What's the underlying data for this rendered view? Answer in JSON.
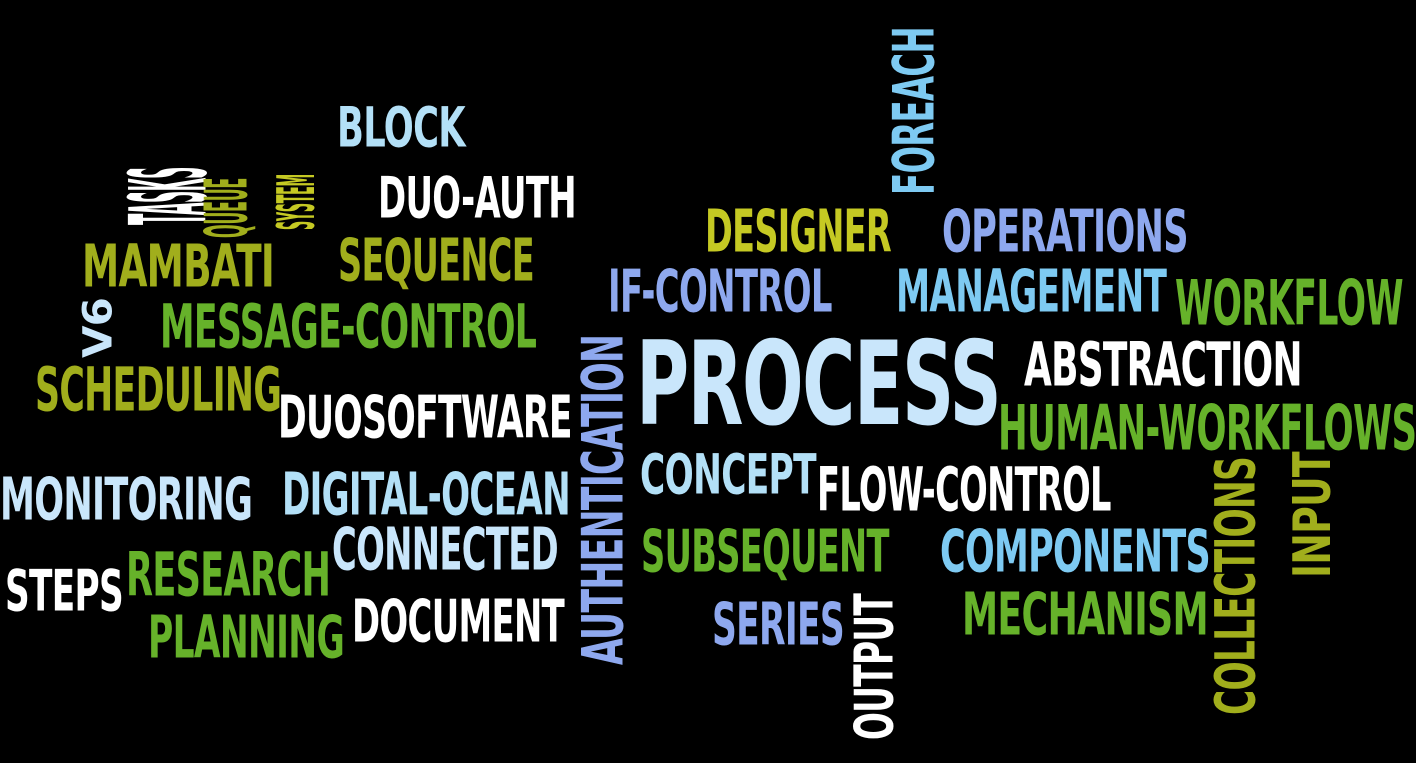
{
  "palette": {
    "background": "#000000",
    "white": "#ffffff",
    "light_blue": "#b3e0f7",
    "sky_blue": "#7ecaf2",
    "periwinkle": "#8ea8ee",
    "pale_blue": "#c9e6fb",
    "lime": "#66b22a",
    "olive": "#a1ae1c",
    "yellow_green": "#c5c923"
  },
  "words": [
    {
      "text": "TASKS",
      "color": "#ffffff"
    },
    {
      "text": "QUEUE",
      "color": "#a1ae1c"
    },
    {
      "text": "SYSTEM",
      "color": "#c5c923"
    },
    {
      "text": "BLOCK",
      "color": "#b3e0f7"
    },
    {
      "text": "DUO-AUTH",
      "color": "#ffffff"
    },
    {
      "text": "FOREACH",
      "color": "#7ecaf2"
    },
    {
      "text": "DESIGNER",
      "color": "#c5c923"
    },
    {
      "text": "OPERATIONS",
      "color": "#8ea8ee"
    },
    {
      "text": "MAMBATI",
      "color": "#a1ae1c"
    },
    {
      "text": "SEQUENCE",
      "color": "#a1ae1c"
    },
    {
      "text": "IF-CONTROL",
      "color": "#8ea8ee"
    },
    {
      "text": "MANAGEMENT",
      "color": "#7ecaf2"
    },
    {
      "text": "WORKFLOW",
      "color": "#66b22a"
    },
    {
      "text": "V6",
      "color": "#c9e6fb"
    },
    {
      "text": "MESSAGE-CONTROL",
      "color": "#66b22a"
    },
    {
      "text": "PROCESS",
      "color": "#c9e6fb"
    },
    {
      "text": "ABSTRACTION",
      "color": "#ffffff"
    },
    {
      "text": "SCHEDULING",
      "color": "#a1ae1c"
    },
    {
      "text": "DUOSOFTWARE",
      "color": "#ffffff"
    },
    {
      "text": "AUTHENTICATION",
      "color": "#8ea8ee"
    },
    {
      "text": "HUMAN-WORKFLOWS",
      "color": "#66b22a"
    },
    {
      "text": "MONITORING",
      "color": "#c9e6fb"
    },
    {
      "text": "DIGITAL-OCEAN",
      "color": "#b3e0f7"
    },
    {
      "text": "CONCEPT",
      "color": "#b3e0f7"
    },
    {
      "text": "FLOW-CONTROL",
      "color": "#ffffff"
    },
    {
      "text": "COLLECTIONS",
      "color": "#a1ae1c"
    },
    {
      "text": "INPUT",
      "color": "#a1ae1c"
    },
    {
      "text": "CONNECTED",
      "color": "#c9e6fb"
    },
    {
      "text": "SUBSEQUENT",
      "color": "#66b22a"
    },
    {
      "text": "COMPONENTS",
      "color": "#7ecaf2"
    },
    {
      "text": "STEPS",
      "color": "#ffffff"
    },
    {
      "text": "RESEARCH",
      "color": "#66b22a"
    },
    {
      "text": "MECHANISM",
      "color": "#66b22a"
    },
    {
      "text": "PLANNING",
      "color": "#66b22a"
    },
    {
      "text": "DOCUMENT",
      "color": "#ffffff"
    },
    {
      "text": "SERIES",
      "color": "#8ea8ee"
    },
    {
      "text": "OUTPUT",
      "color": "#ffffff"
    }
  ]
}
